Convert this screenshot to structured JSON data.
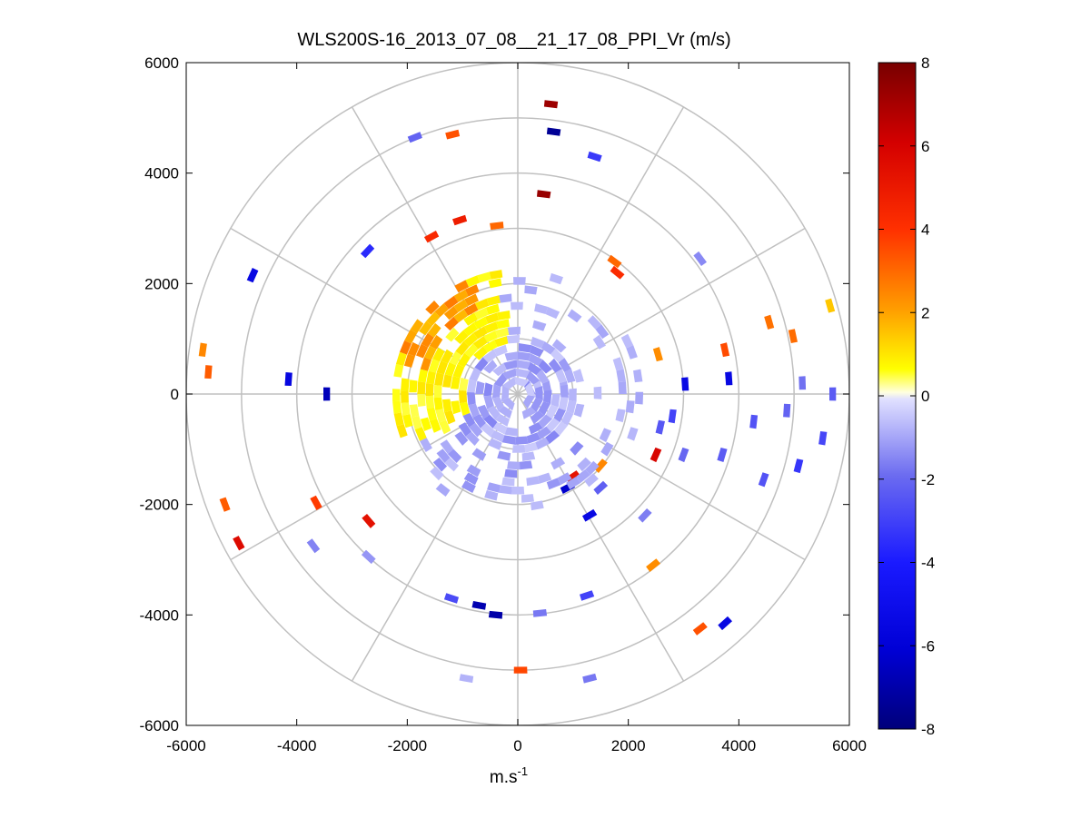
{
  "chart_data": {
    "type": "polar-scatter",
    "title": "WLS200S-16_2013_07_08__21_17_08_PPI_Vr (m/s)",
    "xlabel_main": "m.s",
    "xlabel_sup": "-1",
    "ylabel": "",
    "xlim": [
      -6000,
      6000
    ],
    "ylim": [
      -6000,
      6000
    ],
    "x_ticks": [
      "-6000",
      "-4000",
      "-2000",
      "0",
      "2000",
      "4000",
      "6000"
    ],
    "y_ticks": [
      "6000",
      "4000",
      "2000",
      "0",
      "-2000",
      "-4000",
      "-6000"
    ],
    "x_tick_values": [
      -6000,
      -4000,
      -2000,
      0,
      2000,
      4000,
      6000
    ],
    "y_tick_values": [
      6000,
      4000,
      2000,
      0,
      -2000,
      -4000,
      -6000
    ],
    "range_rings": [
      1000,
      2000,
      3000,
      4000,
      5000,
      6000
    ],
    "spoke_angles_deg": [
      0,
      30,
      60,
      90,
      120,
      150,
      180,
      210,
      240,
      270,
      300,
      330
    ],
    "grid_color": "#c0c0c0",
    "colorbar": {
      "clim": [
        -8,
        8
      ],
      "ticks": [
        "8",
        "6",
        "4",
        "2",
        "0",
        "-2",
        "-4",
        "-6",
        "-8"
      ],
      "tick_values": [
        8,
        6,
        4,
        2,
        0,
        -2,
        -4,
        -6,
        -8
      ]
    },
    "bins": [
      {
        "x": 600,
        "y": 5250,
        "v": 7.2
      },
      {
        "x": 650,
        "y": 4750,
        "v": -7.4
      },
      {
        "x": 470,
        "y": 3620,
        "v": 7.3
      },
      {
        "x": 1390,
        "y": 4300,
        "v": -3.2
      },
      {
        "x": -1860,
        "y": 4650,
        "v": -2.2
      },
      {
        "x": -1180,
        "y": 4700,
        "v": 3.4
      },
      {
        "x": -1050,
        "y": 3150,
        "v": 4.8
      },
      {
        "x": -1560,
        "y": 2850,
        "v": 4.3
      },
      {
        "x": -380,
        "y": 3050,
        "v": 3.0
      },
      {
        "x": -2720,
        "y": 2590,
        "v": -3.6
      },
      {
        "x": -4800,
        "y": 2150,
        "v": -5.4
      },
      {
        "x": -5700,
        "y": 800,
        "v": 2.4
      },
      {
        "x": -5600,
        "y": 400,
        "v": 3.2
      },
      {
        "x": -4150,
        "y": 270,
        "v": -5.5
      },
      {
        "x": -3460,
        "y": 0,
        "v": -6.6
      },
      {
        "x": -5300,
        "y": -2000,
        "v": 3.2
      },
      {
        "x": -5050,
        "y": -2700,
        "v": 5.6
      },
      {
        "x": -3650,
        "y": -1970,
        "v": 3.8
      },
      {
        "x": -2700,
        "y": -2300,
        "v": 5.3
      },
      {
        "x": -3700,
        "y": -2750,
        "v": -1.6
      },
      {
        "x": -2700,
        "y": -2950,
        "v": -1.3
      },
      {
        "x": -1200,
        "y": -3700,
        "v": -2.8
      },
      {
        "x": -700,
        "y": -3830,
        "v": -6.8
      },
      {
        "x": -400,
        "y": -4000,
        "v": -7.0
      },
      {
        "x": 400,
        "y": -3970,
        "v": -1.8
      },
      {
        "x": 1250,
        "y": -3650,
        "v": -3.0
      },
      {
        "x": 50,
        "y": -5000,
        "v": 3.6
      },
      {
        "x": 1300,
        "y": -5150,
        "v": -1.8
      },
      {
        "x": -930,
        "y": -5150,
        "v": -0.8
      },
      {
        "x": 2450,
        "y": -3100,
        "v": 2.3
      },
      {
        "x": 3300,
        "y": -4250,
        "v": 3.4
      },
      {
        "x": 3750,
        "y": -4150,
        "v": -5.4
      },
      {
        "x": 1750,
        "y": 2400,
        "v": 3.0
      },
      {
        "x": 1800,
        "y": 2200,
        "v": 4.2
      },
      {
        "x": 3300,
        "y": 2450,
        "v": -1.5
      },
      {
        "x": 4550,
        "y": 1300,
        "v": 2.8
      },
      {
        "x": 4980,
        "y": 1050,
        "v": 2.9
      },
      {
        "x": 5650,
        "y": 1600,
        "v": 1.4
      },
      {
        "x": 3750,
        "y": 800,
        "v": 3.5
      },
      {
        "x": 2540,
        "y": 720,
        "v": 2.3
      },
      {
        "x": 3820,
        "y": 280,
        "v": -5.4
      },
      {
        "x": 3030,
        "y": 180,
        "v": -5.3
      },
      {
        "x": 5150,
        "y": 200,
        "v": -1.9
      },
      {
        "x": 5700,
        "y": 0,
        "v": -2.4
      },
      {
        "x": 4870,
        "y": -300,
        "v": -2.2
      },
      {
        "x": 4270,
        "y": -500,
        "v": -2.6
      },
      {
        "x": 5520,
        "y": -800,
        "v": -2.9
      },
      {
        "x": 5080,
        "y": -1300,
        "v": -3.3
      },
      {
        "x": 4450,
        "y": -1550,
        "v": -2.6
      },
      {
        "x": 3700,
        "y": -1100,
        "v": -2.4
      },
      {
        "x": 2500,
        "y": -1100,
        "v": 5.8
      },
      {
        "x": 2580,
        "y": -600,
        "v": -2.5
      },
      {
        "x": 1500,
        "y": -1700,
        "v": -2.3
      },
      {
        "x": 2300,
        "y": -2200,
        "v": -1.7
      },
      {
        "x": 1300,
        "y": -2200,
        "v": -5.4
      },
      {
        "x": 1500,
        "y": -1300,
        "v": 2.4
      },
      {
        "x": 1000,
        "y": -1500,
        "v": 5.2
      },
      {
        "x": 900,
        "y": -1700,
        "v": -6.2
      },
      {
        "x": 2800,
        "y": -400,
        "v": -3.0
      },
      {
        "x": 3000,
        "y": -1100,
        "v": -2.1
      }
    ]
  }
}
